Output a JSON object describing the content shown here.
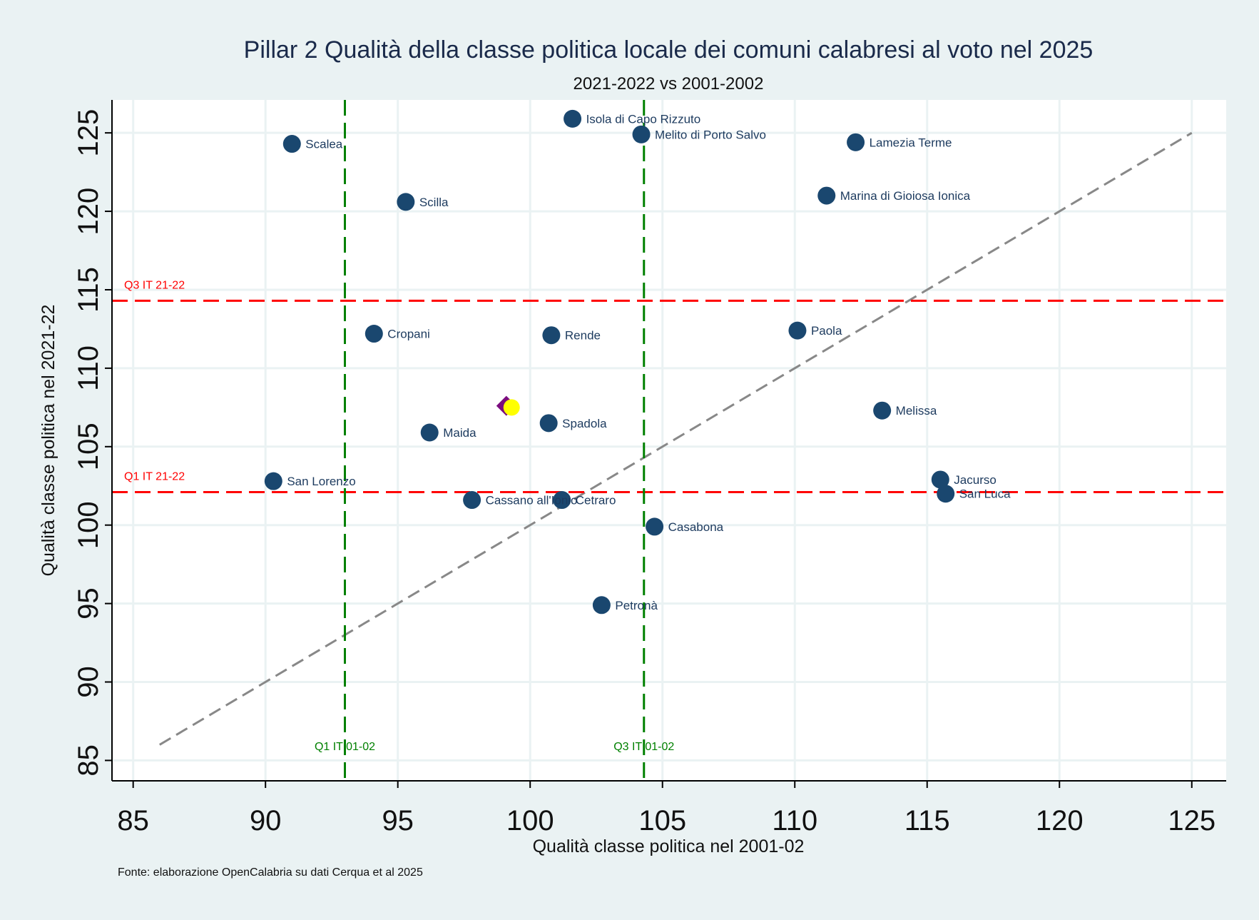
{
  "chart_data": {
    "type": "scatter",
    "title": "Pillar 2 Qualità della classe politica locale dei comuni calabresi al voto nel 2025",
    "subtitle": "2021-2022 vs 2001-2002",
    "xlabel": "Qualità classe politica nel 2001-02",
    "ylabel": "Qualità classe politica nel 2021-22",
    "note": "Fonte: elaborazione OpenCalabria su dati Cerqua et al 2025",
    "xlim": [
      84.2,
      126.3
    ],
    "ylim": [
      83.7,
      127.1
    ],
    "x_ticks": [
      85,
      90,
      95,
      100,
      105,
      110,
      115,
      120,
      125
    ],
    "y_ticks": [
      85,
      90,
      95,
      100,
      105,
      110,
      115,
      120,
      125
    ],
    "grid": true,
    "point_color": "#1a476f",
    "points": [
      {
        "label": "Isola di Capo Rizzuto",
        "x": 101.6,
        "y": 125.9
      },
      {
        "label": "Melito di Porto Salvo",
        "x": 104.2,
        "y": 124.9
      },
      {
        "label": "Scalea",
        "x": 91.0,
        "y": 124.3
      },
      {
        "label": "Lamezia Terme",
        "x": 112.3,
        "y": 124.4
      },
      {
        "label": "Scilla",
        "x": 95.3,
        "y": 120.6
      },
      {
        "label": "Marina di Gioiosa Ionica",
        "x": 111.2,
        "y": 121.0
      },
      {
        "label": "Cropani",
        "x": 94.1,
        "y": 112.2
      },
      {
        "label": "Rende",
        "x": 100.8,
        "y": 112.1
      },
      {
        "label": "Paola",
        "x": 110.1,
        "y": 112.4
      },
      {
        "label": "Spadola",
        "x": 100.7,
        "y": 106.5
      },
      {
        "label": "Melissa",
        "x": 113.3,
        "y": 107.3
      },
      {
        "label": "Maida",
        "x": 96.2,
        "y": 105.9
      },
      {
        "label": "San Lorenzo",
        "x": 90.3,
        "y": 102.8
      },
      {
        "label": "Jacurso",
        "x": 115.5,
        "y": 102.9
      },
      {
        "label": "San Luca",
        "x": 115.7,
        "y": 102.0
      },
      {
        "label": "Cassano all'Ionio",
        "x": 97.8,
        "y": 101.6
      },
      {
        "label": "Cetraro",
        "x": 101.2,
        "y": 101.6
      },
      {
        "label": "Casabona",
        "x": 104.7,
        "y": 99.9
      },
      {
        "label": "Petronà",
        "x": 102.7,
        "y": 94.9
      }
    ],
    "highlight_points": [
      {
        "shape": "diamond",
        "color": "#7b0d7f",
        "x": 99.1,
        "y": 107.6
      },
      {
        "shape": "circle",
        "color": "#ffff00",
        "x": 99.3,
        "y": 107.5
      }
    ],
    "reference_lines": {
      "diagonal": {
        "from": 86,
        "to": 125,
        "color": "#888888"
      },
      "horizontal": [
        {
          "label": "Q3 IT 21-22",
          "y": 114.3,
          "color": "#ff0000"
        },
        {
          "label": "Q1 IT 21-22",
          "y": 102.1,
          "color": "#ff0000"
        }
      ],
      "vertical": [
        {
          "label": "Q1 IT 01-02",
          "x": 93.0,
          "color": "#008000"
        },
        {
          "label": "Q3 IT 01-02",
          "x": 104.3,
          "color": "#008000"
        }
      ]
    }
  }
}
